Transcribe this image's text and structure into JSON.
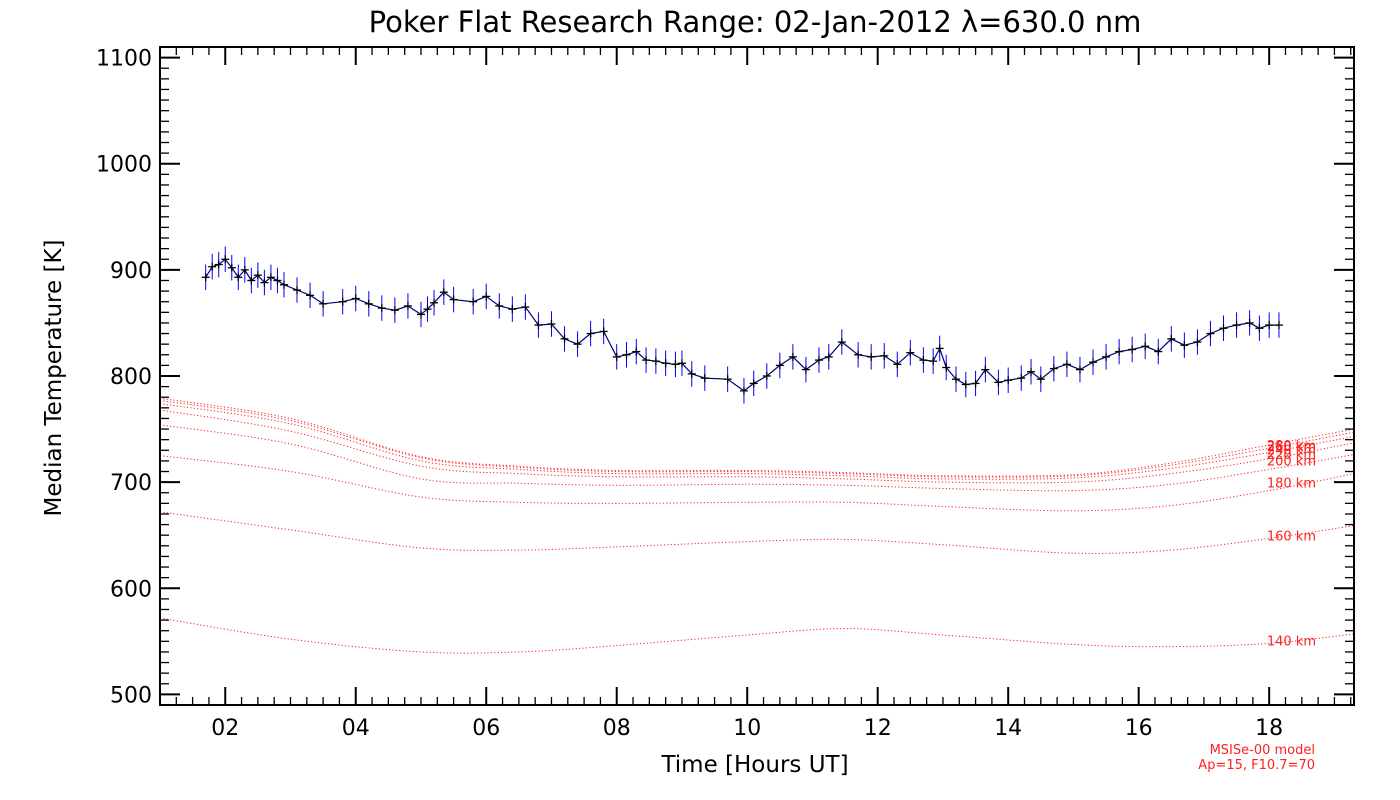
{
  "chart_data": {
    "type": "line",
    "title": "Poker Flat Research Range: 02-Jan-2012 λ=630.0 nm",
    "xlabel": "Time [Hours UT]",
    "ylabel": "Median Temperature [K]",
    "xlim": [
      1.0,
      19.3
    ],
    "ylim": [
      490,
      1110
    ],
    "x_ticks": [
      2,
      4,
      6,
      8,
      10,
      12,
      14,
      16,
      18
    ],
    "x_tick_labels": [
      "02",
      "04",
      "06",
      "08",
      "10",
      "12",
      "14",
      "16",
      "18"
    ],
    "y_ticks": [
      500,
      600,
      700,
      800,
      900,
      1000,
      1100
    ],
    "y_tick_labels": [
      "500",
      "600",
      "700",
      "800",
      "900",
      "1000",
      "1100"
    ],
    "grid": false,
    "measured": {
      "color_line": "#000080",
      "color_marker": "#000000",
      "color_error": "#0000ff",
      "points": [
        [
          1.7,
          893
        ],
        [
          1.8,
          903
        ],
        [
          1.9,
          905
        ],
        [
          2.0,
          910
        ],
        [
          2.1,
          902
        ],
        [
          2.2,
          893
        ],
        [
          2.3,
          900
        ],
        [
          2.4,
          890
        ],
        [
          2.5,
          895
        ],
        [
          2.6,
          888
        ],
        [
          2.7,
          893
        ],
        [
          2.8,
          890
        ],
        [
          2.9,
          886
        ],
        [
          3.1,
          881
        ],
        [
          3.3,
          876
        ],
        [
          3.5,
          868
        ],
        [
          3.8,
          870
        ],
        [
          4.0,
          873
        ],
        [
          4.2,
          868
        ],
        [
          4.4,
          864
        ],
        [
          4.6,
          862
        ],
        [
          4.8,
          866
        ],
        [
          5.0,
          858
        ],
        [
          5.1,
          863
        ],
        [
          5.2,
          869
        ],
        [
          5.35,
          879
        ],
        [
          5.5,
          872
        ],
        [
          5.8,
          870
        ],
        [
          6.0,
          875
        ],
        [
          6.2,
          866
        ],
        [
          6.4,
          863
        ],
        [
          6.6,
          865
        ],
        [
          6.8,
          848
        ],
        [
          7.0,
          849
        ],
        [
          7.2,
          835
        ],
        [
          7.4,
          830
        ],
        [
          7.6,
          840
        ],
        [
          7.8,
          842
        ],
        [
          8.0,
          818
        ],
        [
          8.15,
          820
        ],
        [
          8.3,
          823
        ],
        [
          8.45,
          815
        ],
        [
          8.6,
          814
        ],
        [
          8.75,
          812
        ],
        [
          8.9,
          811
        ],
        [
          9.0,
          812
        ],
        [
          9.15,
          802
        ],
        [
          9.35,
          798
        ],
        [
          9.7,
          797
        ],
        [
          9.95,
          786
        ],
        [
          10.1,
          793
        ],
        [
          10.3,
          800
        ],
        [
          10.5,
          810
        ],
        [
          10.7,
          818
        ],
        [
          10.9,
          806
        ],
        [
          11.1,
          815
        ],
        [
          11.25,
          818
        ],
        [
          11.45,
          832
        ],
        [
          11.7,
          820
        ],
        [
          11.9,
          818
        ],
        [
          12.1,
          819
        ],
        [
          12.3,
          811
        ],
        [
          12.5,
          822
        ],
        [
          12.7,
          815
        ],
        [
          12.85,
          814
        ],
        [
          12.95,
          826
        ],
        [
          13.05,
          808
        ],
        [
          13.2,
          797
        ],
        [
          13.35,
          792
        ],
        [
          13.5,
          793
        ],
        [
          13.65,
          806
        ],
        [
          13.85,
          794
        ],
        [
          14.0,
          796
        ],
        [
          14.2,
          798
        ],
        [
          14.35,
          804
        ],
        [
          14.5,
          797
        ],
        [
          14.7,
          807
        ],
        [
          14.9,
          811
        ],
        [
          15.1,
          806
        ],
        [
          15.3,
          813
        ],
        [
          15.5,
          818
        ],
        [
          15.7,
          823
        ],
        [
          15.9,
          825
        ],
        [
          16.1,
          828
        ],
        [
          16.3,
          823
        ],
        [
          16.5,
          835
        ],
        [
          16.7,
          829
        ],
        [
          16.9,
          832
        ],
        [
          17.1,
          840
        ],
        [
          17.3,
          845
        ],
        [
          17.5,
          848
        ],
        [
          17.7,
          850
        ],
        [
          17.85,
          845
        ],
        [
          18.0,
          848
        ],
        [
          18.15,
          848
        ]
      ]
    },
    "model": {
      "color": "#ff2020",
      "name": "MSISe-00 model",
      "params": "Ap=15, F10.7=70",
      "series": [
        {
          "name": "140 km",
          "values": [
            [
              1,
              572
            ],
            [
              3,
              552
            ],
            [
              5,
              540
            ],
            [
              6.5,
              540
            ],
            [
              8,
              546
            ],
            [
              10,
              556
            ],
            [
              11.5,
              562
            ],
            [
              13,
              556
            ],
            [
              15,
              547
            ],
            [
              16.5,
              545
            ],
            [
              18,
              548
            ],
            [
              19.3,
              557
            ]
          ]
        },
        {
          "name": "160 km",
          "values": [
            [
              1,
              672
            ],
            [
              3,
              655
            ],
            [
              5,
              638
            ],
            [
              6.5,
              636
            ],
            [
              8,
              639
            ],
            [
              10,
              644
            ],
            [
              11.5,
              646
            ],
            [
              13,
              641
            ],
            [
              15,
              633
            ],
            [
              16.5,
              636
            ],
            [
              18,
              647
            ],
            [
              19.3,
              659
            ]
          ]
        },
        {
          "name": "180 km",
          "values": [
            [
              1,
              725
            ],
            [
              3,
              710
            ],
            [
              5,
              686
            ],
            [
              6.5,
              681
            ],
            [
              8,
              680
            ],
            [
              10,
              681
            ],
            [
              11.5,
              681
            ],
            [
              13,
              677
            ],
            [
              15,
              673
            ],
            [
              16.5,
              678
            ],
            [
              18,
              692
            ],
            [
              19.3,
              708
            ]
          ]
        },
        {
          "name": "200 km",
          "values": [
            [
              1,
              754
            ],
            [
              3,
              736
            ],
            [
              5,
              703
            ],
            [
              6.5,
              699
            ],
            [
              8,
              697
            ],
            [
              10,
              698
            ],
            [
              11.5,
              697
            ],
            [
              13,
              694
            ],
            [
              15,
              692
            ],
            [
              16.5,
              698
            ],
            [
              18,
              712
            ],
            [
              19.3,
              726
            ]
          ]
        },
        {
          "name": "220 km",
          "values": [
            [
              1,
              768
            ],
            [
              3,
              748
            ],
            [
              5,
              715
            ],
            [
              6.5,
              708
            ],
            [
              8,
              705
            ],
            [
              10,
              705
            ],
            [
              11.5,
              703
            ],
            [
              13,
              700
            ],
            [
              15,
              700
            ],
            [
              16.5,
              708
            ],
            [
              18,
              722
            ],
            [
              19.3,
              737
            ]
          ]
        },
        {
          "name": "240 km",
          "values": [
            [
              1,
              774
            ],
            [
              3,
              755
            ],
            [
              5,
              720
            ],
            [
              6.5,
              712
            ],
            [
              8,
              708
            ],
            [
              10,
              708
            ],
            [
              11.5,
              706
            ],
            [
              13,
              703
            ],
            [
              15,
              704
            ],
            [
              16.5,
              713
            ],
            [
              18,
              728
            ],
            [
              19.3,
              743
            ]
          ]
        },
        {
          "name": "260 km",
          "values": [
            [
              1,
              777
            ],
            [
              3,
              758
            ],
            [
              5,
              723
            ],
            [
              6.5,
              714
            ],
            [
              8,
              710
            ],
            [
              10,
              710
            ],
            [
              11.5,
              708
            ],
            [
              13,
              705
            ],
            [
              15,
              706
            ],
            [
              16.5,
              716
            ],
            [
              18,
              732
            ],
            [
              19.3,
              747
            ]
          ]
        },
        {
          "name": "280 km",
          "values": [
            [
              1,
              779
            ],
            [
              3,
              760
            ],
            [
              5,
              724
            ],
            [
              6.5,
              715
            ],
            [
              8,
              711
            ],
            [
              10,
              711
            ],
            [
              11.5,
              709
            ],
            [
              13,
              706
            ],
            [
              15,
              707
            ],
            [
              16.5,
              718
            ],
            [
              18,
              735
            ],
            [
              19.3,
              750
            ]
          ]
        }
      ]
    }
  }
}
